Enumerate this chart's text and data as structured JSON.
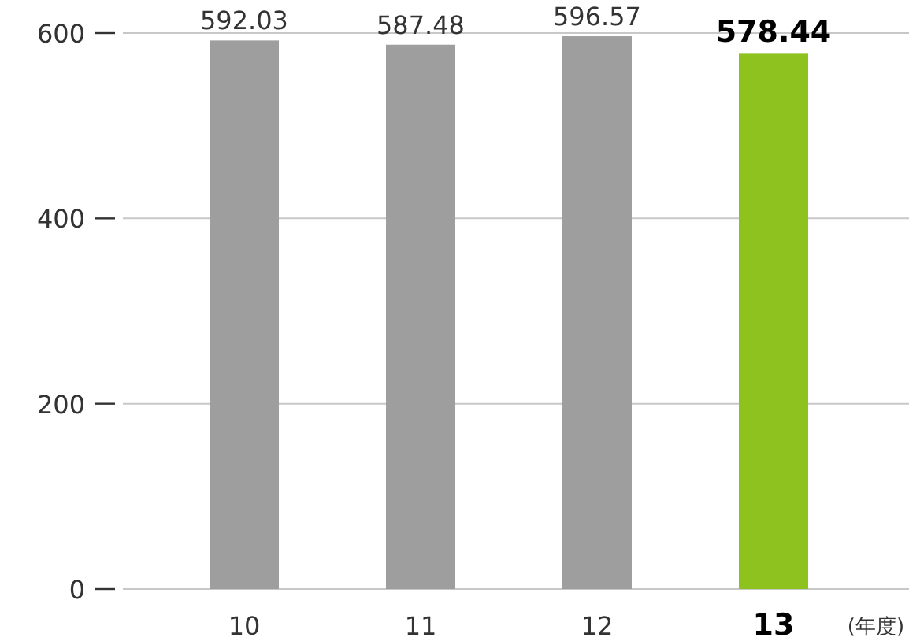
{
  "chart_data": {
    "type": "bar",
    "xlabel": "(年度)",
    "categories": [
      "10",
      "11",
      "12",
      "13"
    ],
    "values": [
      592.03,
      587.48,
      596.57,
      578.44
    ],
    "colors": [
      "#9d9e9d",
      "#9d9e9d",
      "#9d9e9d",
      "#8dc21f"
    ],
    "ylim": [
      0,
      600
    ],
    "yticks": [
      0,
      200,
      400,
      600
    ],
    "grid": "y",
    "data_labels": true
  }
}
